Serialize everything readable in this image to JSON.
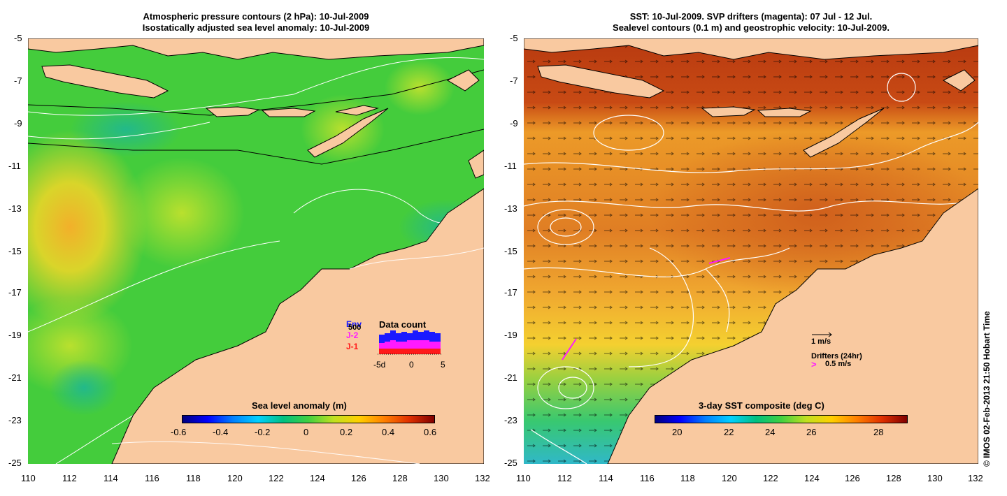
{
  "left_panel": {
    "title_line1": "Atmospheric pressure contours (2 hPa): 10-Jul-2009",
    "title_line2": "Isostatically adjusted sea level anomaly: 10-Jul-2009",
    "colorbar_label": "Sea level anomaly (m)",
    "colorbar_ticks": [
      "-0.6",
      "-0.4",
      "-0.2",
      "0",
      "0.2",
      "0.4",
      "0.6"
    ],
    "inset": {
      "title": "Data count",
      "legend": [
        {
          "label": "Env",
          "color": "#1a1aff"
        },
        {
          "label": "J-2",
          "color": "#ff1aff"
        },
        {
          "label": "J-1",
          "color": "#ff1a1a"
        }
      ],
      "overlay_text": "500",
      "x_ticks": [
        "-5d",
        "0",
        "5"
      ]
    }
  },
  "right_panel": {
    "title_line1": "SST: 10-Jul-2009. SVP drifters (magenta): 07 Jul - 12 Jul.",
    "title_line2": "Sealevel contours (0.1 m) and geostrophic velocity: 10-Jul-2009.",
    "colorbar_label": "3-day SST composite (deg C)",
    "colorbar_ticks": [
      "20",
      "22",
      "24",
      "26",
      "28"
    ],
    "velocity_scale_label": "1 m/s",
    "drifters_label": "Drifters (24hr)",
    "drifters_scale_label": "0.5 m/s",
    "drifter_symbol": ">"
  },
  "axes": {
    "y_ticks": [
      "-5",
      "-7",
      "-9",
      "-11",
      "-13",
      "-15",
      "-17",
      "-19",
      "-21",
      "-23",
      "-25"
    ],
    "x_ticks": [
      "110",
      "112",
      "114",
      "116",
      "118",
      "120",
      "122",
      "124",
      "126",
      "128",
      "130",
      "132"
    ]
  },
  "credit": "© IMOS 02-Feb-2013 21:50 Hobart Time",
  "colors": {
    "land": "#f9c9a0",
    "ocean_left": "#3fcf3f",
    "ocean_right": "#e88a28"
  }
}
